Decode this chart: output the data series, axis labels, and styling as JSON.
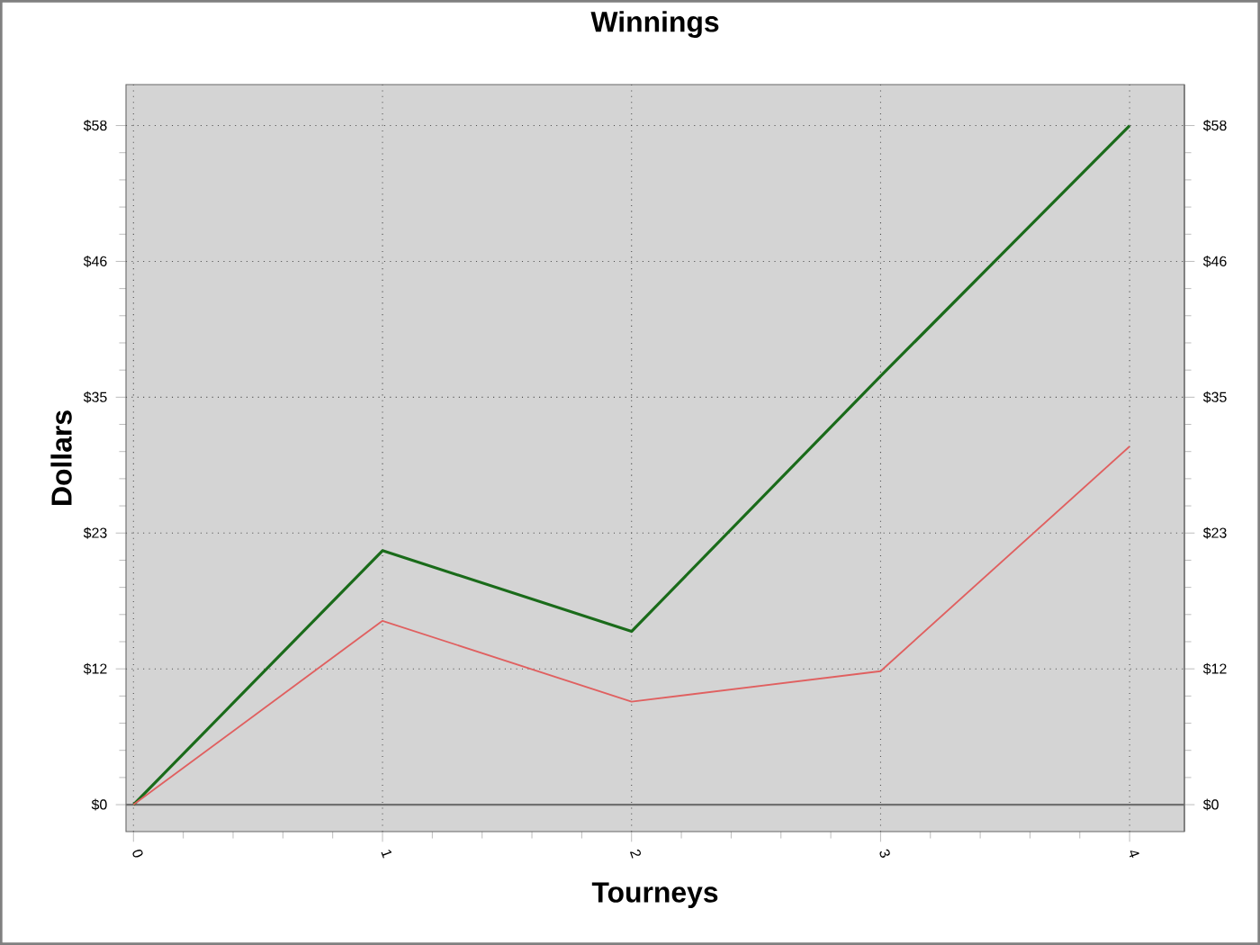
{
  "chart_data": {
    "type": "line",
    "title": "Winnings",
    "xlabel": "Tourneys",
    "ylabel": "Dollars",
    "x": [
      0,
      1,
      2,
      3,
      4
    ],
    "series": [
      {
        "color": "#1a6b1a",
        "values": [
          0,
          21.7,
          14.8,
          36.6,
          58
        ]
      },
      {
        "color": "#e06060",
        "values": [
          0,
          15.7,
          8.8,
          11.4,
          30.6
        ]
      }
    ],
    "xlim": [
      -0.03,
      4.22
    ],
    "xticks": [
      0,
      1,
      2,
      3,
      4
    ],
    "ylim": [
      -2.3,
      61.5
    ],
    "yticks": [
      {
        "value": 0,
        "label": "$0"
      },
      {
        "value": 11.6,
        "label": "$12"
      },
      {
        "value": 23.2,
        "label": "$23"
      },
      {
        "value": 34.8,
        "label": "$35"
      },
      {
        "value": 46.4,
        "label": "$46"
      },
      {
        "value": 58,
        "label": "$58"
      }
    ],
    "y2lim": [
      -2.3,
      61.5
    ],
    "y2ticks": [
      {
        "value": 0,
        "label": "$0"
      },
      {
        "value": 11.6,
        "label": "$12"
      },
      {
        "value": 23.2,
        "label": "$23"
      },
      {
        "value": 34.8,
        "label": "$35"
      },
      {
        "value": 46.4,
        "label": "$46"
      },
      {
        "value": 58,
        "label": "$58"
      }
    ],
    "ref_lines": [
      {
        "axis": "y",
        "value": 0,
        "color": "#707070"
      }
    ],
    "grid": true,
    "line_style": "solid"
  }
}
